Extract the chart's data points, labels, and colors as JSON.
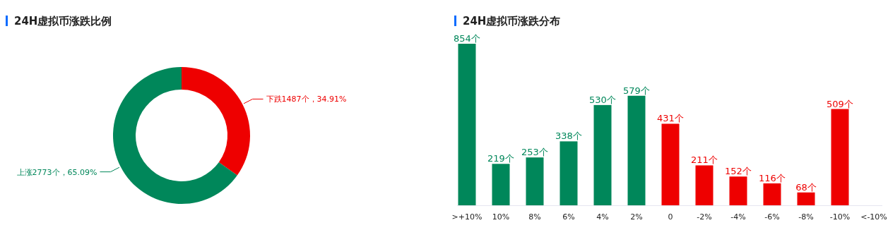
{
  "chart_data": [
    {
      "type": "donut",
      "title": "24H虚拟币涨跌比例",
      "categories": [
        "下跌",
        "上涨"
      ],
      "values": [
        1487,
        2773
      ],
      "colors": [
        "#ee0000",
        "#00875a"
      ],
      "value_labels": [
        "1487个，34.91%",
        "2773个，65.09%"
      ]
    },
    {
      "type": "bar",
      "title": "24H虚拟币涨跌分布",
      "categories": [
        ">+10%",
        "10%",
        "8%",
        "6%",
        "4%",
        "2%",
        "0",
        "-2%",
        "-4%",
        "-6%",
        "-8%",
        "-10%",
        "<-10%"
      ],
      "values": [
        854,
        219,
        253,
        338,
        530,
        579,
        431,
        211,
        152,
        116,
        68,
        509,
        null
      ],
      "colors": [
        "#00875a",
        "#00875a",
        "#00875a",
        "#00875a",
        "#00875a",
        "#00875a",
        "#ee0000",
        "#ee0000",
        "#ee0000",
        "#ee0000",
        "#ee0000",
        "#ee0000",
        null
      ],
      "value_labels": [
        "854个",
        "219个",
        "253个",
        "338个",
        "530个",
        "579个",
        "431个",
        "211个",
        "152个",
        "116个",
        "68个",
        "509个",
        null
      ]
    }
  ]
}
